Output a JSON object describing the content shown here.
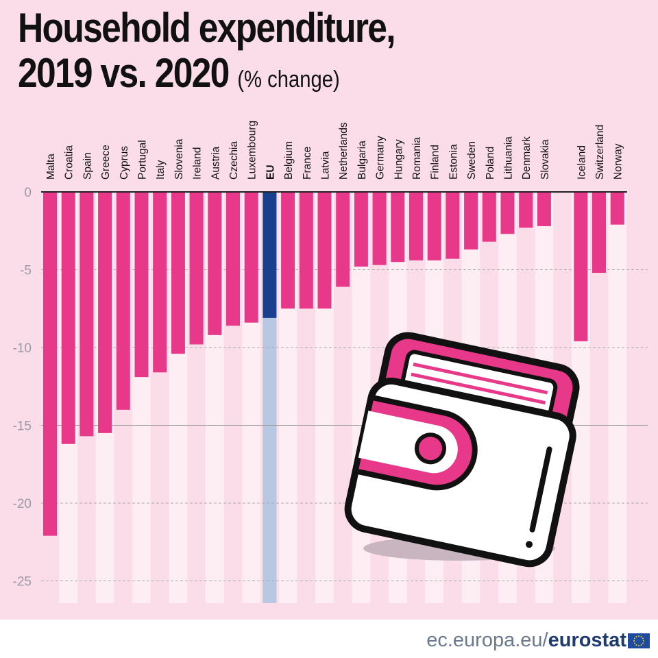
{
  "chart_data": {
    "type": "bar",
    "title": "Household expenditure,",
    "title_line2": "2019 vs. 2020",
    "title_unit": "(% change)",
    "categories": [
      "Malta",
      "Croatia",
      "Spain",
      "Greece",
      "Cyprus",
      "Portugal",
      "Italy",
      "Slovenia",
      "Ireland",
      "Austria",
      "Czechia",
      "Luxembourg",
      "EU",
      "Belgium",
      "France",
      "Latvia",
      "Netherlands",
      "Bulgaria",
      "Germany",
      "Hungary",
      "Romania",
      "Finland",
      "Estonia",
      "Sweden",
      "Poland",
      "Lithuania",
      "Denmark",
      "Slovakia",
      "Iceland",
      "Switzerland",
      "Norway"
    ],
    "values": [
      -22.1,
      -16.2,
      -15.7,
      -15.5,
      -14.0,
      -11.9,
      -11.6,
      -10.4,
      -9.8,
      -9.2,
      -8.6,
      -8.4,
      -8.1,
      -7.5,
      -7.5,
      -7.5,
      -6.1,
      -4.8,
      -4.7,
      -4.5,
      -4.4,
      -4.4,
      -4.3,
      -3.7,
      -3.2,
      -2.7,
      -2.3,
      -2.2,
      -9.6,
      -5.2,
      -2.1
    ],
    "highlight": "EU",
    "yticks": [
      "0",
      "-5",
      "-10",
      "-15",
      "-20",
      "-25"
    ],
    "ylim": [
      -26,
      0
    ],
    "grid": true,
    "colors": {
      "bar": "#e8388a",
      "highlight": "#1a3f8f",
      "highlight_band": "#b8c8e3",
      "background": "#fbdde9"
    }
  },
  "footer": {
    "site": "ec.europa.eu/",
    "brand": "eurostat"
  }
}
